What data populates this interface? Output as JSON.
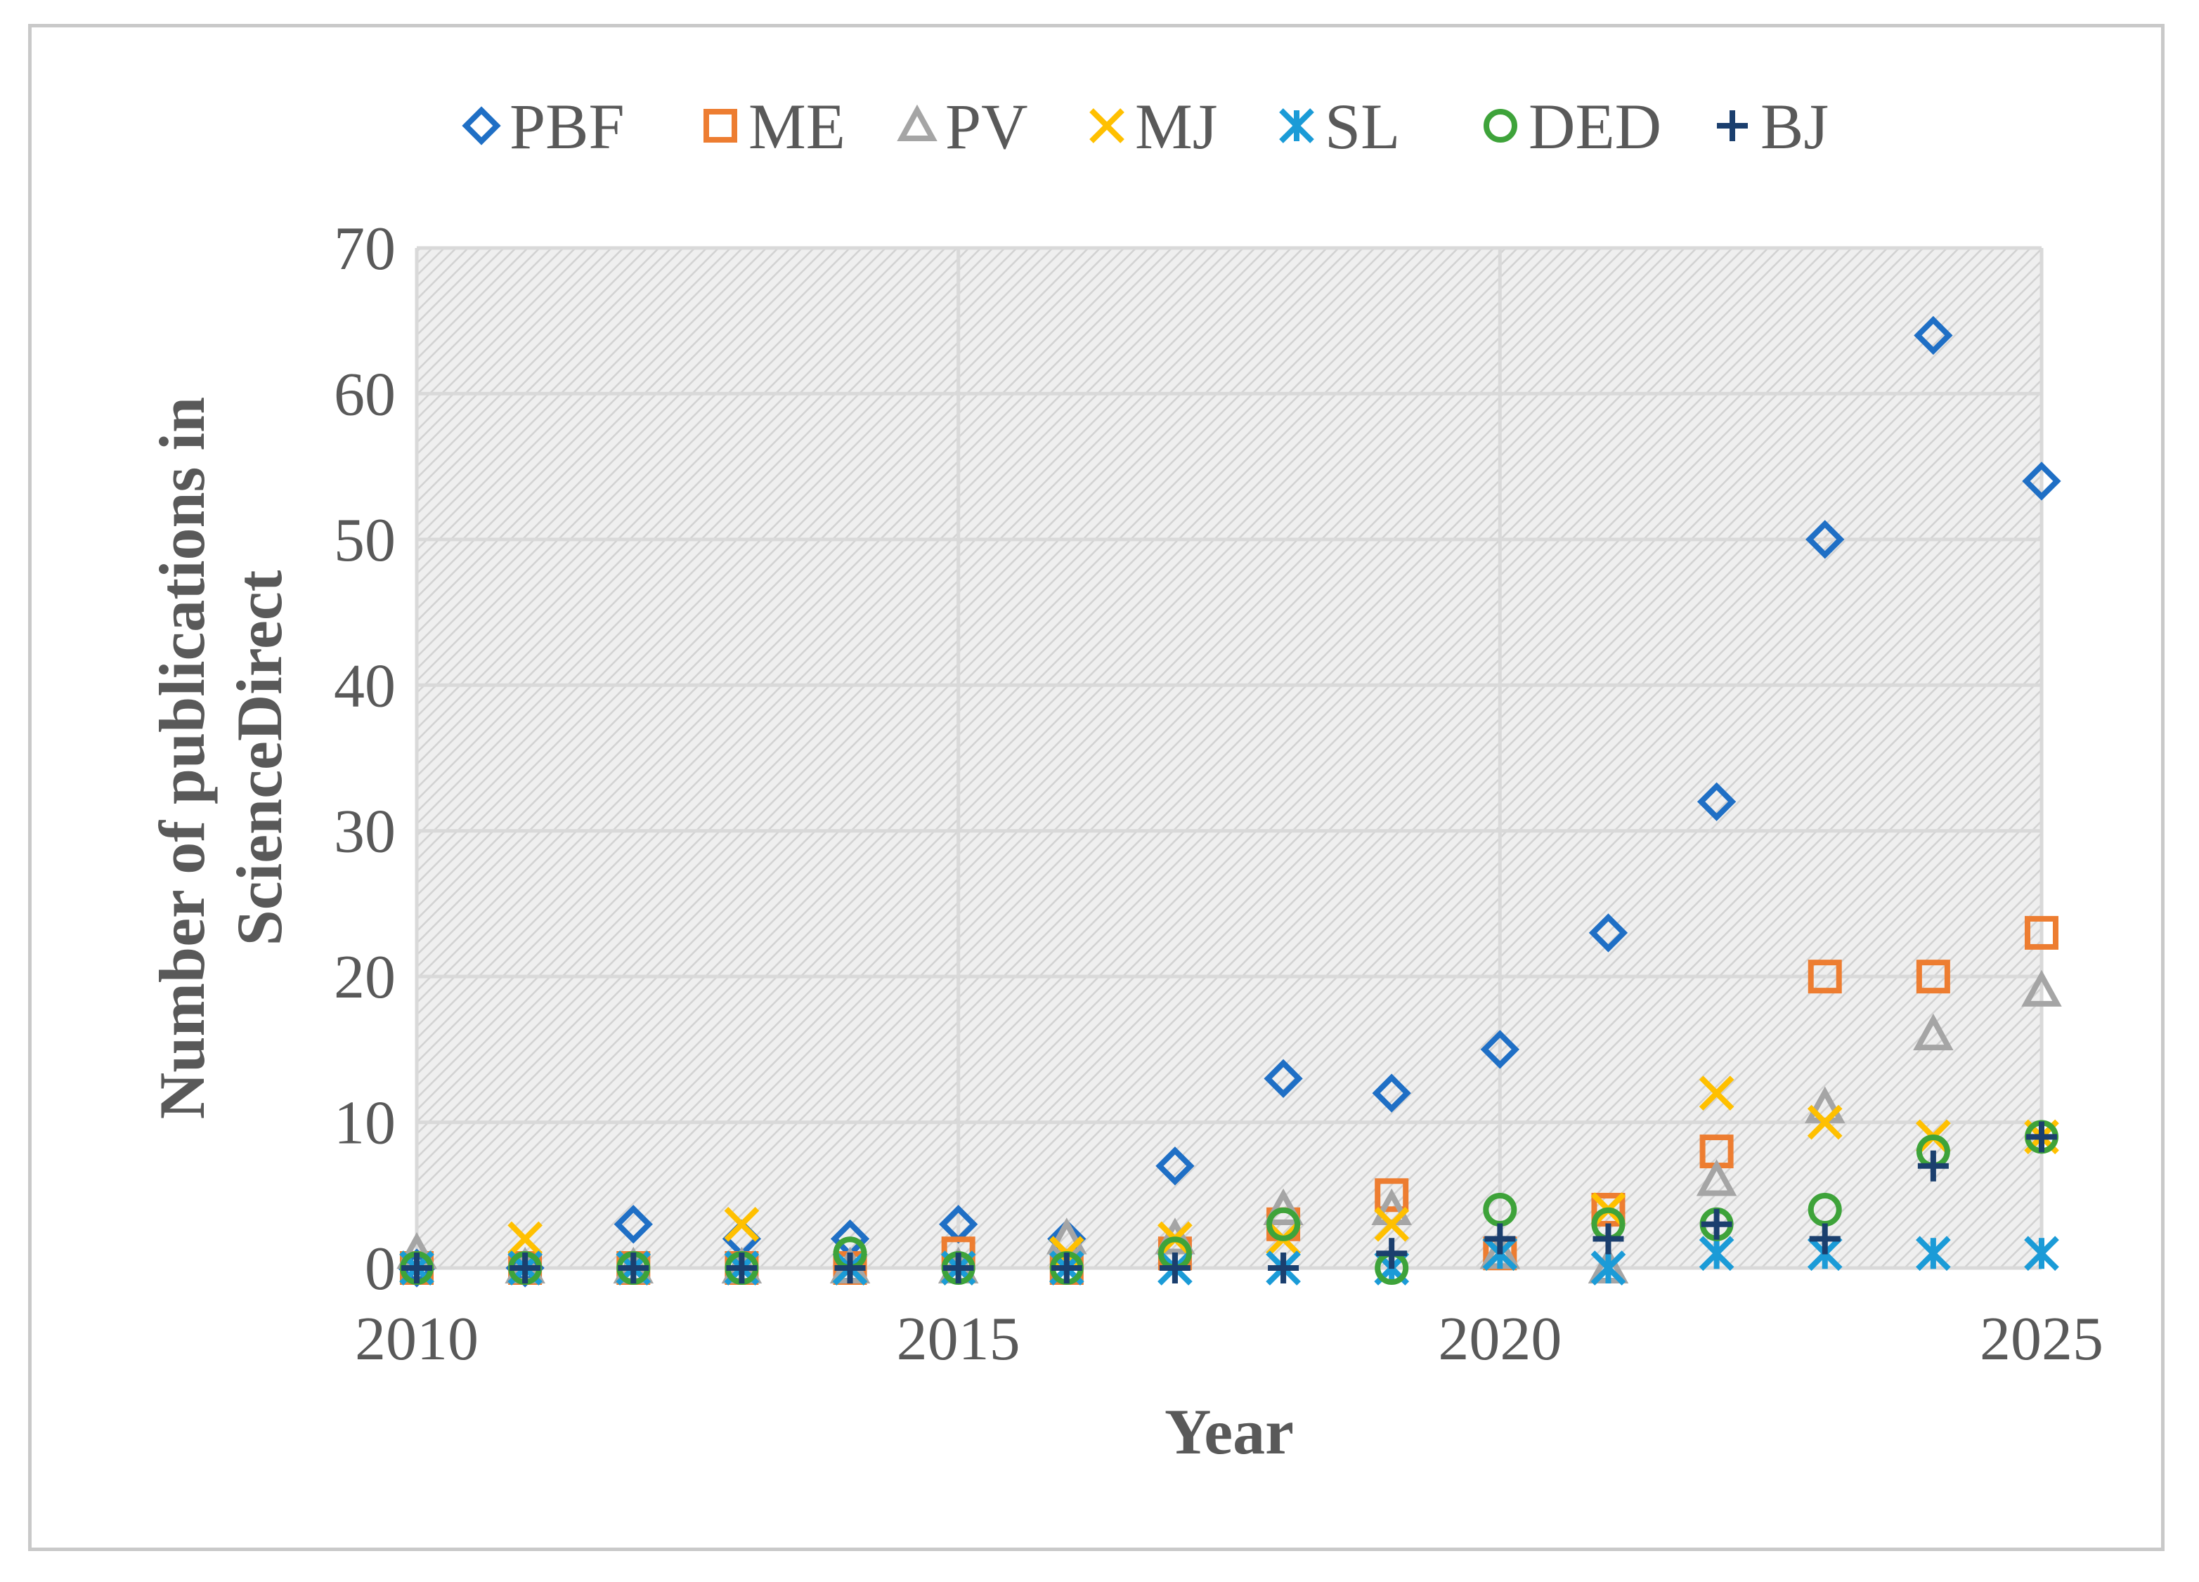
{
  "chart_data": {
    "type": "scatter",
    "title": "",
    "xlabel": "Year",
    "ylabel": "Number of publications in ScienceDirect",
    "xlim": [
      2010,
      2025
    ],
    "ylim": [
      0,
      70
    ],
    "x_ticks": [
      "2010",
      "2015",
      "2020",
      "2025"
    ],
    "y_ticks": [
      "0",
      "10",
      "20",
      "30",
      "40",
      "50",
      "60",
      "70"
    ],
    "grid": true,
    "legend_position": "top",
    "x": [
      2010,
      2011,
      2012,
      2013,
      2014,
      2015,
      2016,
      2017,
      2018,
      2019,
      2020,
      2021,
      2022,
      2023,
      2024,
      2025
    ],
    "series": [
      {
        "name": "PBF",
        "marker": "diamond",
        "color": "#1f6fc5",
        "values": [
          0,
          0,
          3,
          2,
          2,
          3,
          2,
          7,
          13,
          12,
          15,
          23,
          32,
          50,
          64,
          54
        ]
      },
      {
        "name": "ME",
        "marker": "square",
        "color": "#ed7d31",
        "values": [
          0,
          0,
          0,
          0,
          0,
          1,
          0,
          1,
          3,
          5,
          1,
          4,
          8,
          20,
          20,
          23
        ]
      },
      {
        "name": "PV",
        "marker": "triangle",
        "color": "#a5a5a5",
        "values": [
          1,
          0,
          0,
          0,
          0,
          0,
          2,
          2,
          4,
          4,
          1,
          0,
          6,
          11,
          16,
          19
        ]
      },
      {
        "name": "MJ",
        "marker": "x",
        "color": "#ffc000",
        "values": [
          0,
          2,
          0,
          3,
          0,
          0,
          1,
          2,
          2,
          3,
          1,
          4,
          12,
          10,
          9,
          9
        ]
      },
      {
        "name": "SL",
        "marker": "star",
        "color": "#1b9bd7",
        "values": [
          0,
          0,
          0,
          0,
          0,
          0,
          0,
          0,
          0,
          0,
          1,
          0,
          1,
          1,
          1,
          1
        ]
      },
      {
        "name": "DED",
        "marker": "circle",
        "color": "#3ea33a",
        "values": [
          0,
          0,
          0,
          0,
          1,
          0,
          0,
          1,
          3,
          0,
          4,
          3,
          3,
          4,
          8,
          9
        ]
      },
      {
        "name": "BJ",
        "marker": "plus",
        "color": "#1b3f6e",
        "values": [
          0,
          0,
          0,
          0,
          0,
          0,
          0,
          0,
          0,
          1,
          2,
          2,
          3,
          2,
          7,
          9
        ]
      }
    ]
  }
}
